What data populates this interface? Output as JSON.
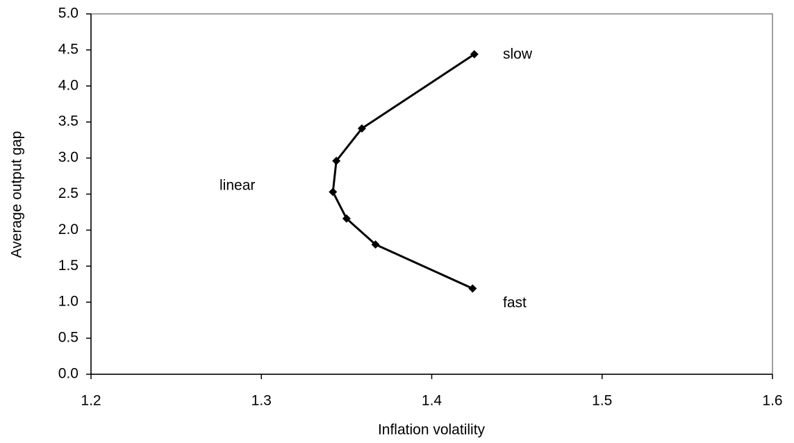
{
  "chart_data": {
    "type": "line",
    "x_label": "Inflation volatility",
    "y_label": "Average output gap",
    "x": [
      1.425,
      1.359,
      1.344,
      1.342,
      1.35,
      1.367,
      1.424
    ],
    "values": [
      4.44,
      3.41,
      2.96,
      2.53,
      2.16,
      1.8,
      1.19
    ],
    "color": "#000000",
    "xlim": [
      1.2,
      1.6
    ],
    "xticks": [
      1.2,
      1.3,
      1.4,
      1.5,
      1.6
    ],
    "ylim": [
      0,
      5
    ],
    "yticks": [
      {
        "value": 0,
        "label": "0.0"
      },
      {
        "value": 0.5,
        "label": "0.5"
      },
      {
        "value": 1,
        "label": "1.0"
      },
      {
        "value": 1.5,
        "label": "1.5"
      },
      {
        "value": 2,
        "label": "2.0"
      },
      {
        "value": 2.5,
        "label": "2.5"
      },
      {
        "value": 3,
        "label": "3.0"
      },
      {
        "value": 3.5,
        "label": "3.5"
      },
      {
        "value": 4,
        "label": "4.0"
      },
      {
        "value": 4.5,
        "label": "4.5"
      },
      {
        "value": 5,
        "label": "5.0"
      }
    ],
    "annotations": [
      "slow",
      "fast",
      "linear"
    ],
    "grid": false
  }
}
